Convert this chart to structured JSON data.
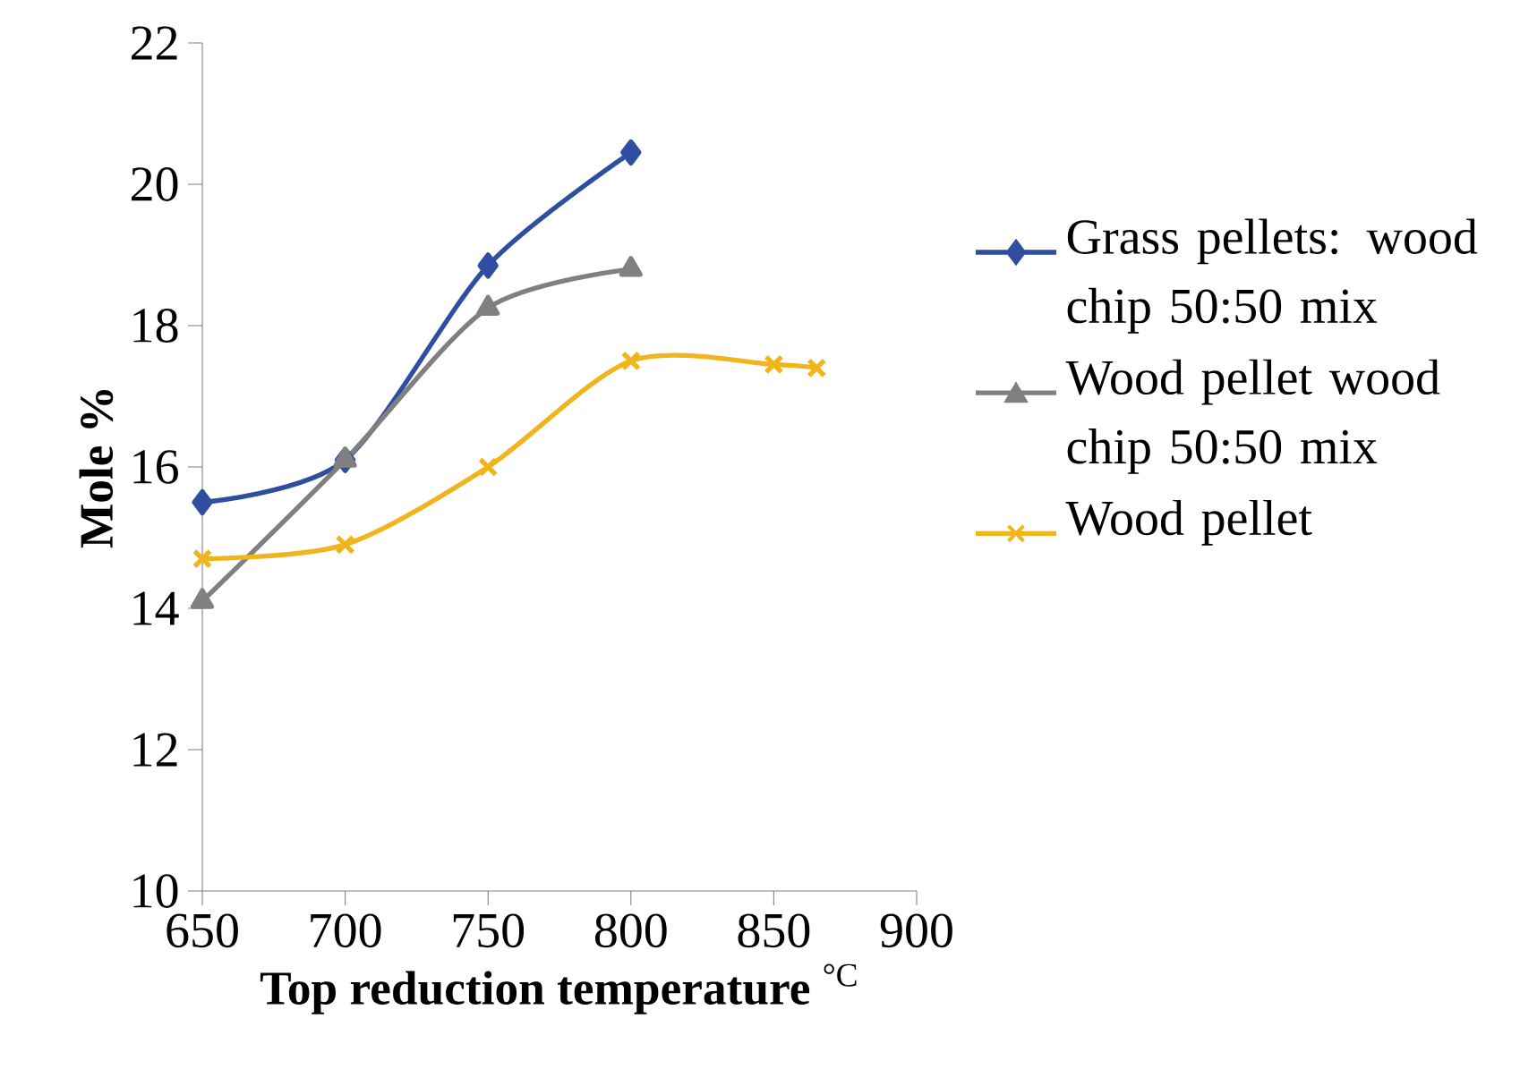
{
  "chart_data": {
    "type": "line",
    "xlabel": "**Top reduction temperature** $^{°C}$",
    "ylabel": "Mole %",
    "xlim": [
      650,
      900
    ],
    "xticks": [
      650,
      700,
      750,
      800,
      850,
      900
    ],
    "ylim": [
      10,
      22
    ],
    "yticks": [
      10,
      12,
      14,
      16,
      18,
      20,
      22
    ],
    "grid": false,
    "legend": "right",
    "series": [
      {
        "name": "Grass pellets: wood chip 50:50 mix",
        "color": "#2e4fa0",
        "marker": "diamond",
        "x": [
          650,
          700,
          750,
          800
        ],
        "values": [
          15.5,
          16.1,
          18.85,
          20.45
        ]
      },
      {
        "name": "Wood pellet wood chip 50:50 mix",
        "color": "#808080",
        "marker": "triangle",
        "x": [
          650,
          700,
          750,
          800
        ],
        "values": [
          14.1,
          16.1,
          18.25,
          18.8
        ]
      },
      {
        "name": "Wood pellet",
        "color": "#f0b41c",
        "marker": "cross",
        "x": [
          650,
          700,
          750,
          800,
          850,
          865
        ],
        "values": [
          14.7,
          14.9,
          16.0,
          17.5,
          17.45,
          17.4
        ]
      }
    ]
  }
}
